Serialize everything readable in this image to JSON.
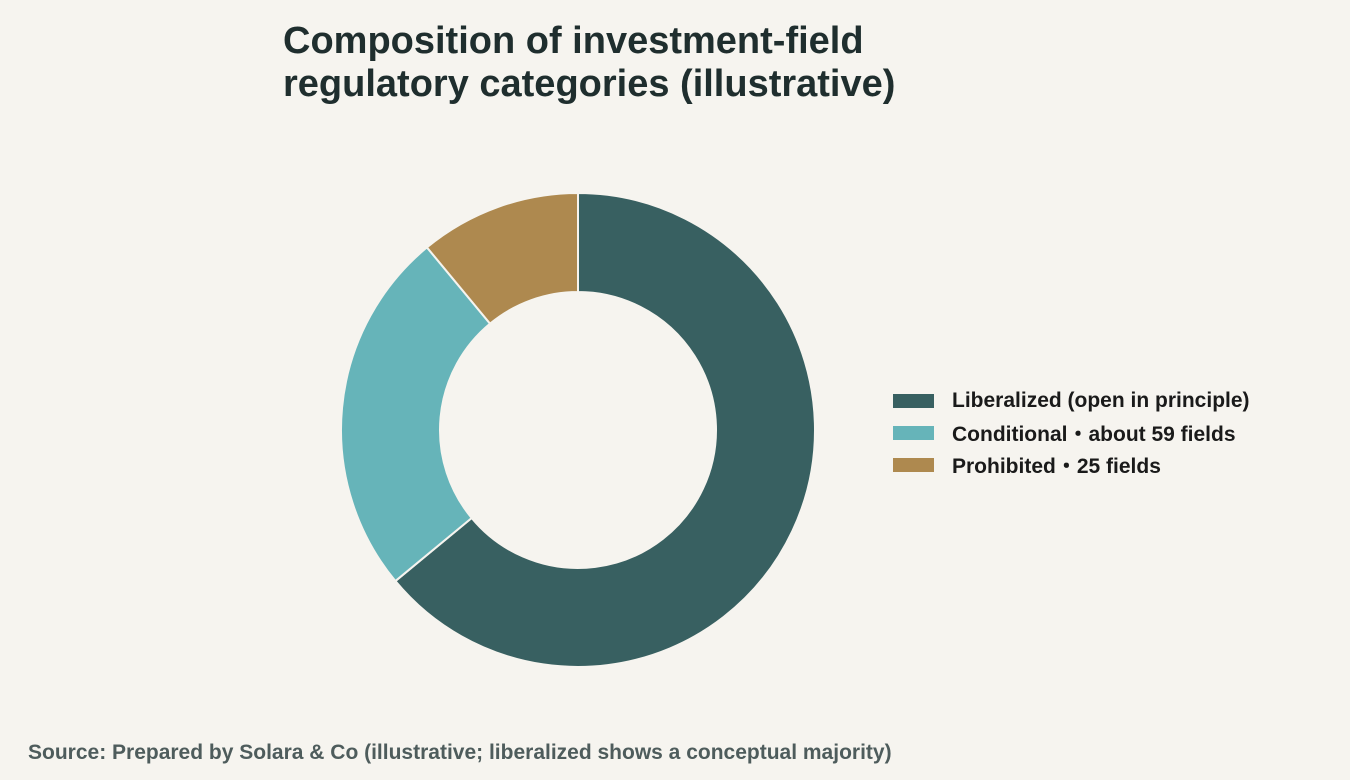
{
  "chart_data": {
    "type": "pie",
    "variant": "donut",
    "title": "Composition of investment-field regulatory categories (illustrative)",
    "slices": [
      {
        "label": "Liberalized (open in principle)",
        "value": 64,
        "color": "#386061"
      },
      {
        "label": "Conditional・about 59 fields",
        "value": 25,
        "color": "#66b4b9"
      },
      {
        "label": "Prohibited・25 fields",
        "value": 11,
        "color": "#ae894f"
      }
    ],
    "legend_position": "right",
    "start_angle": "top",
    "direction": "clockwise"
  },
  "source": "Source: Prepared by Solara & Co (illustrative; liberalized shows a conceptual majority)"
}
